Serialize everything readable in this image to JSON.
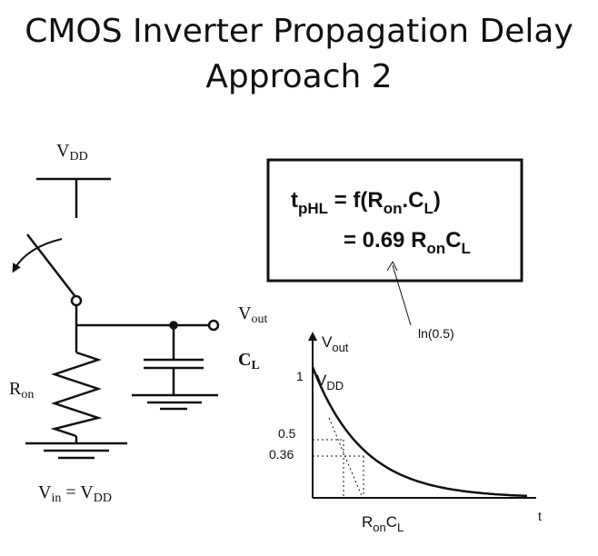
{
  "slide": {
    "title_line1": "CMOS Inverter Propagation Delay",
    "title_line2": "Approach 2"
  },
  "circuit": {
    "vdd_main": "V",
    "vdd_sub": "DD",
    "vout_main": "V",
    "vout_sub": "out",
    "cl_main": "C",
    "cl_sub": "L",
    "ron_main": "R",
    "ron_sub": "on",
    "vin_main": "V",
    "vin_sub": "in",
    "vin_eq": " = V",
    "vin_eq_sub": "DD"
  },
  "formula": {
    "l1_t": "t",
    "l1_t_sub": "pHL",
    "l1_eq": " = f(R",
    "l1_on": "on",
    "l1_dot": ".C",
    "l1_l": "L",
    "l1_end": ")",
    "l2_eq": "= 0.69 R",
    "l2_on": "on",
    "l2_c": "C",
    "l2_l": "L",
    "annotation": "ln(0.5)"
  },
  "graph": {
    "ylabel_main": "V",
    "ylabel_sub": "out",
    "tick_1": "1",
    "tick_05": "0.5",
    "tick_036": "0.36",
    "vdd_main": "V",
    "vdd_sub": "DD",
    "xtick_main": "R",
    "xtick_on": "on",
    "xtick_c": "C",
    "xtick_l": "L",
    "xlabel": "t"
  },
  "colors": {
    "stroke": "#111111",
    "background": "#ffffff"
  }
}
